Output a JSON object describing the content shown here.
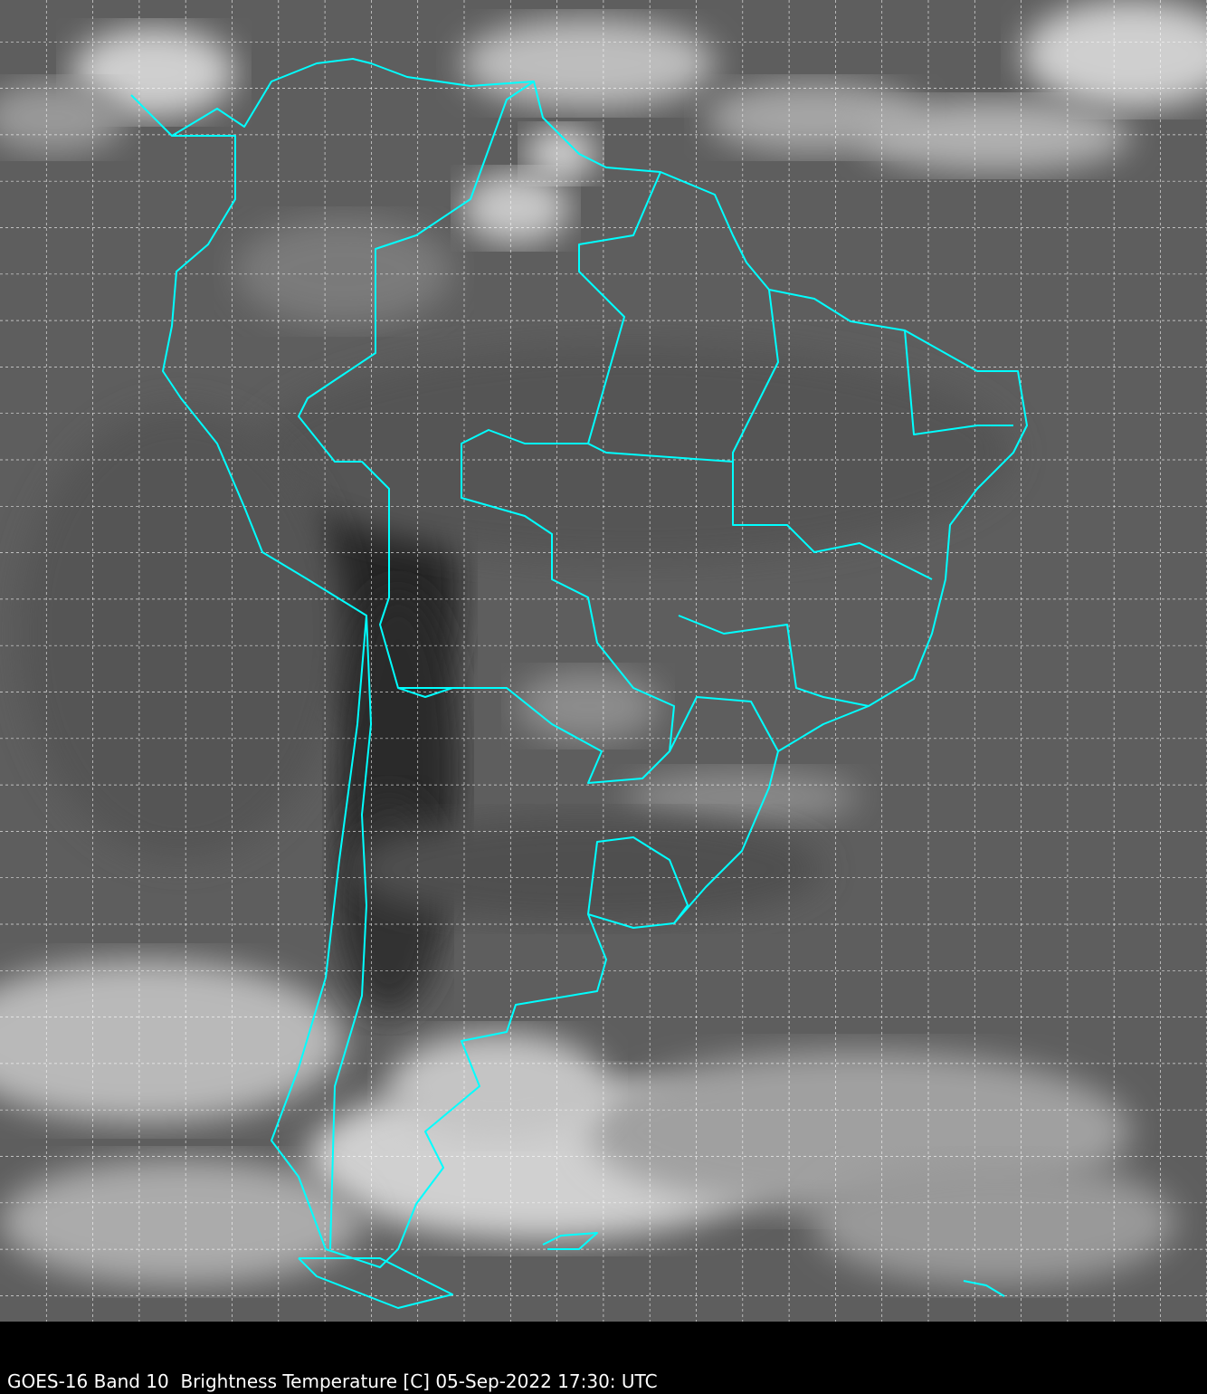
{
  "caption": "GOES-16 Band 10  Brightness Temperature [C] 05-Sep-2022 17:30: UTC",
  "map": {
    "imagery": "satellite infrared brightness temperature, grayscale",
    "region": "South America",
    "border_color": "#00ffff",
    "grid_color": "#ffffff",
    "grid_style": "dashed",
    "background_color": "#000000"
  }
}
